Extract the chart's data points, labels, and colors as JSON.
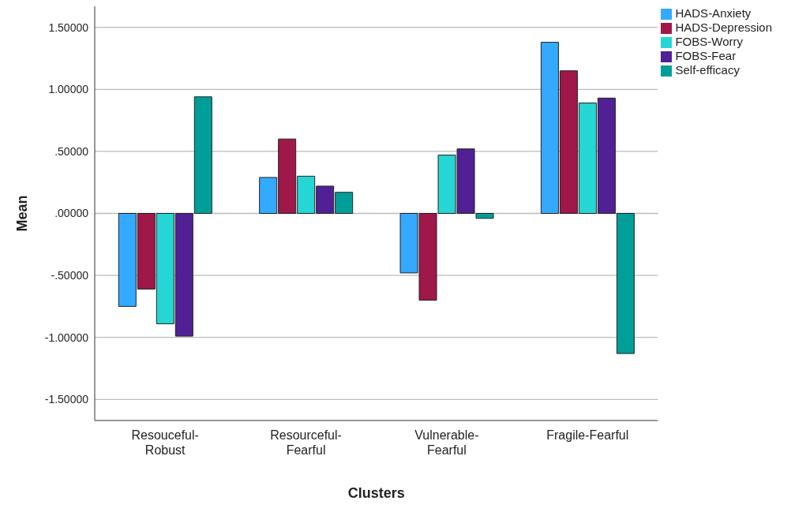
{
  "chart_data": {
    "type": "bar",
    "xlabel": "Clusters",
    "ylabel": "Mean",
    "categories": [
      "Resouceful-Robust",
      "Resourceful-Fearful",
      "Vulnerable-Fearful",
      "Fragile-Fearful"
    ],
    "series": [
      {
        "name": "HADS-Anxiety",
        "color": "#33aaff",
        "values": [
          -0.75,
          0.29,
          -0.48,
          1.38
        ]
      },
      {
        "name": "HADS-Depression",
        "color": "#a0174a",
        "values": [
          -0.61,
          0.6,
          -0.7,
          1.15
        ]
      },
      {
        "name": "FOBS-Worry",
        "color": "#26d6d4",
        "values": [
          -0.89,
          0.3,
          0.47,
          0.89
        ]
      },
      {
        "name": "FOBS-Fear",
        "color": "#512094",
        "values": [
          -0.99,
          0.22,
          0.52,
          0.93
        ]
      },
      {
        "name": "Self-efficacy",
        "color": "#009e99",
        "values": [
          0.94,
          0.17,
          -0.04,
          -1.13
        ]
      }
    ],
    "ylim": [
      -1.67,
      1.67
    ],
    "yticks": [
      {
        "value": -1.5,
        "label": "-1.50000"
      },
      {
        "value": -1,
        "label": "-1.00000"
      },
      {
        "value": -0.5,
        "label": "-.50000"
      },
      {
        "value": 0,
        "label": ".00000"
      },
      {
        "value": 0.5,
        "label": ".50000"
      },
      {
        "value": 1,
        "label": "1.00000"
      },
      {
        "value": 1.5,
        "label": "1.50000"
      }
    ],
    "grid": "y",
    "legend": "top right"
  }
}
